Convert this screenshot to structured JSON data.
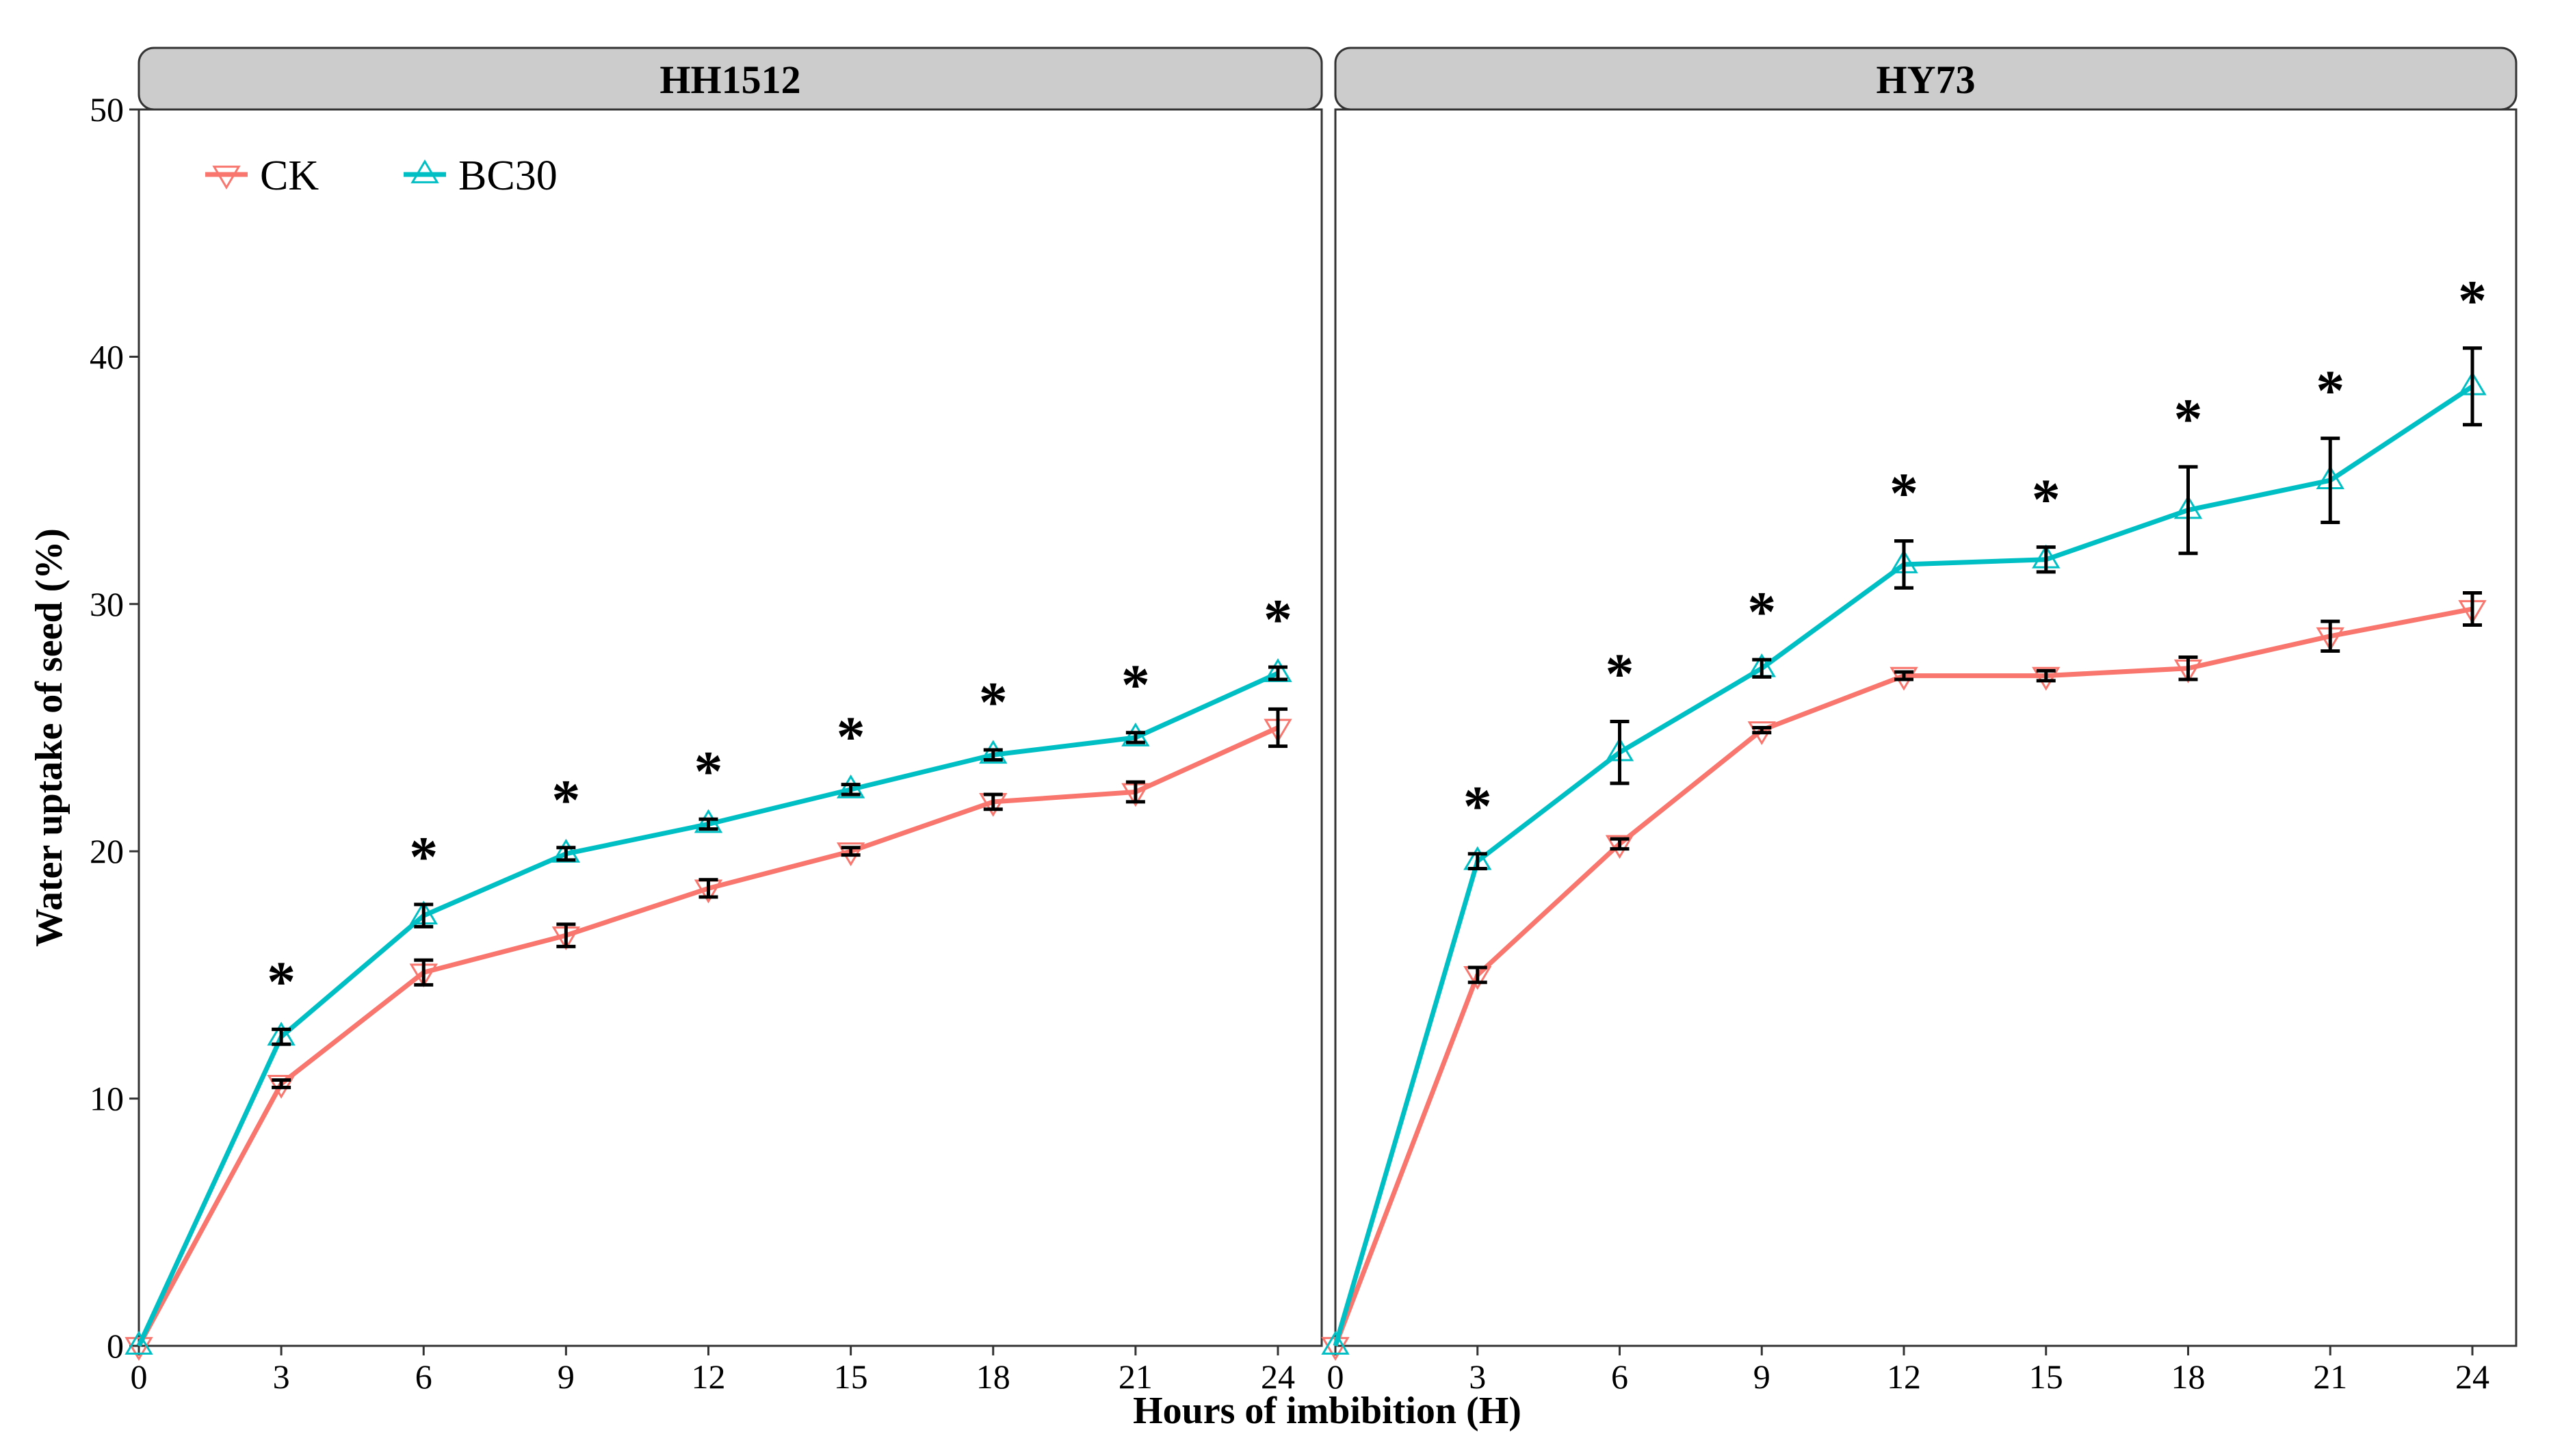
{
  "chart_data": {
    "type": "line",
    "ylabel": "Water uptake of seed (%)",
    "xlabel": "Hours of imbibition (H)",
    "x": [
      0,
      3,
      6,
      9,
      12,
      15,
      18,
      21,
      24
    ],
    "x_ticks": [
      "0",
      "3",
      "6",
      "9",
      "12",
      "15",
      "18",
      "21",
      "24"
    ],
    "y_ticks": [
      "0",
      "10",
      "20",
      "30",
      "40",
      "50"
    ],
    "xlim": [
      0,
      24
    ],
    "ylim": [
      0,
      50
    ],
    "legend": [
      {
        "name": "CK",
        "color": "#F8766D",
        "marker": "triangle-down"
      },
      {
        "name": "BC30",
        "color": "#00BFC4",
        "marker": "triangle-up"
      }
    ],
    "significance_marker": "*",
    "panels": [
      {
        "title": "HH1512",
        "series": [
          {
            "name": "CK",
            "values": [
              0,
              10.6,
              15.1,
              16.6,
              18.5,
              20.0,
              22.0,
              22.4,
              25.0
            ],
            "errors": [
              0,
              0.15,
              0.5,
              0.45,
              0.35,
              0.15,
              0.3,
              0.4,
              0.75
            ]
          },
          {
            "name": "BC30",
            "values": [
              0,
              12.5,
              17.4,
              19.9,
              21.1,
              22.5,
              23.9,
              24.6,
              27.2
            ],
            "errors": [
              0,
              0.3,
              0.45,
              0.25,
              0.2,
              0.2,
              0.2,
              0.2,
              0.25
            ]
          }
        ],
        "significant": [
          3,
          6,
          9,
          12,
          15,
          18,
          21,
          24
        ]
      },
      {
        "title": "HY73",
        "series": [
          {
            "name": "CK",
            "values": [
              0,
              15.0,
              20.3,
              24.9,
              27.1,
              27.1,
              27.4,
              28.7,
              29.8
            ],
            "errors": [
              0,
              0.3,
              0.2,
              0.1,
              0.15,
              0.2,
              0.45,
              0.6,
              0.65
            ]
          },
          {
            "name": "BC30",
            "values": [
              0,
              19.6,
              24.0,
              27.4,
              31.6,
              31.8,
              33.8,
              35.0,
              38.8
            ],
            "errors": [
              0,
              0.3,
              1.25,
              0.35,
              0.95,
              0.5,
              1.75,
              1.7,
              1.55
            ]
          }
        ],
        "significant": [
          3,
          6,
          9,
          12,
          15,
          18,
          21,
          24
        ]
      }
    ]
  }
}
